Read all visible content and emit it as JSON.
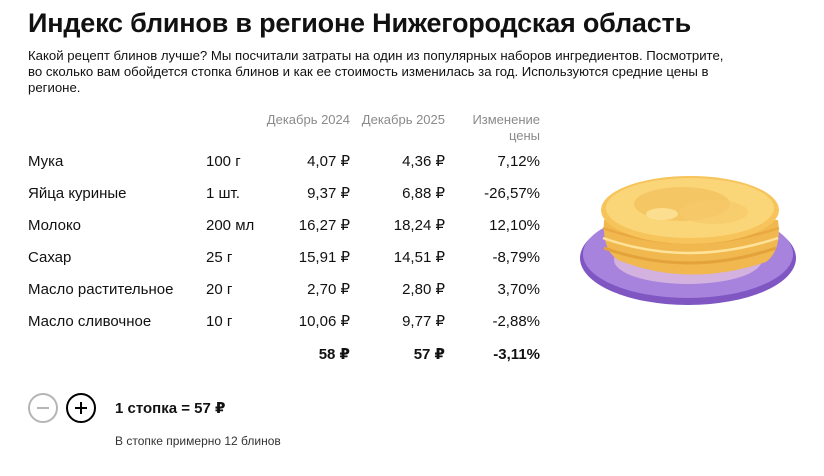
{
  "title": "Индекс блинов в регионе Нижегородская область",
  "subtitle": "Какой рецепт блинов лучше? Мы посчитали затраты на один из популярных наборов ингредиентов. Посмотрите, во сколько вам обойдется стопка блинов и как ее стоимость изменилась за год. Используются средние цены в регионе.",
  "table": {
    "headers": {
      "dec2024": "Декабрь 2024",
      "dec2025": "Декабрь 2025",
      "change": "Изменение цены"
    },
    "rows": [
      {
        "name": "Мука",
        "qty": "100 г",
        "p2024": "4,07 ₽",
        "p2025": "4,36 ₽",
        "change": "7,12%"
      },
      {
        "name": "Яйца куриные",
        "qty": "1 шт.",
        "p2024": "9,37 ₽",
        "p2025": "6,88 ₽",
        "change": "-26,57%"
      },
      {
        "name": "Молоко",
        "qty": "200 мл",
        "p2024": "16,27 ₽",
        "p2025": "18,24 ₽",
        "change": "12,10%"
      },
      {
        "name": "Сахар",
        "qty": "25 г",
        "p2024": "15,91 ₽",
        "p2025": "14,51 ₽",
        "change": "-8,79%"
      },
      {
        "name": "Масло растительное",
        "qty": "20 г",
        "p2024": "2,70 ₽",
        "p2025": "2,80 ₽",
        "change": "3,70%"
      },
      {
        "name": "Масло сливочное",
        "qty": "10 г",
        "p2024": "10,06 ₽",
        "p2025": "9,77 ₽",
        "change": "-2,88%"
      }
    ],
    "total": {
      "p2024": "58 ₽",
      "p2025": "57 ₽",
      "change": "-3,11%"
    }
  },
  "controls": {
    "minus_icon": "minus-icon",
    "plus_icon": "plus-icon",
    "stack_label": "1 стопка = 57 ₽",
    "stack_note": "В стопке примерно 12 блинов",
    "minus_enabled": false
  },
  "colors": {
    "plate": "#a07ad6",
    "pancake": "#f3c25a",
    "muted": "#8a8a8a"
  }
}
